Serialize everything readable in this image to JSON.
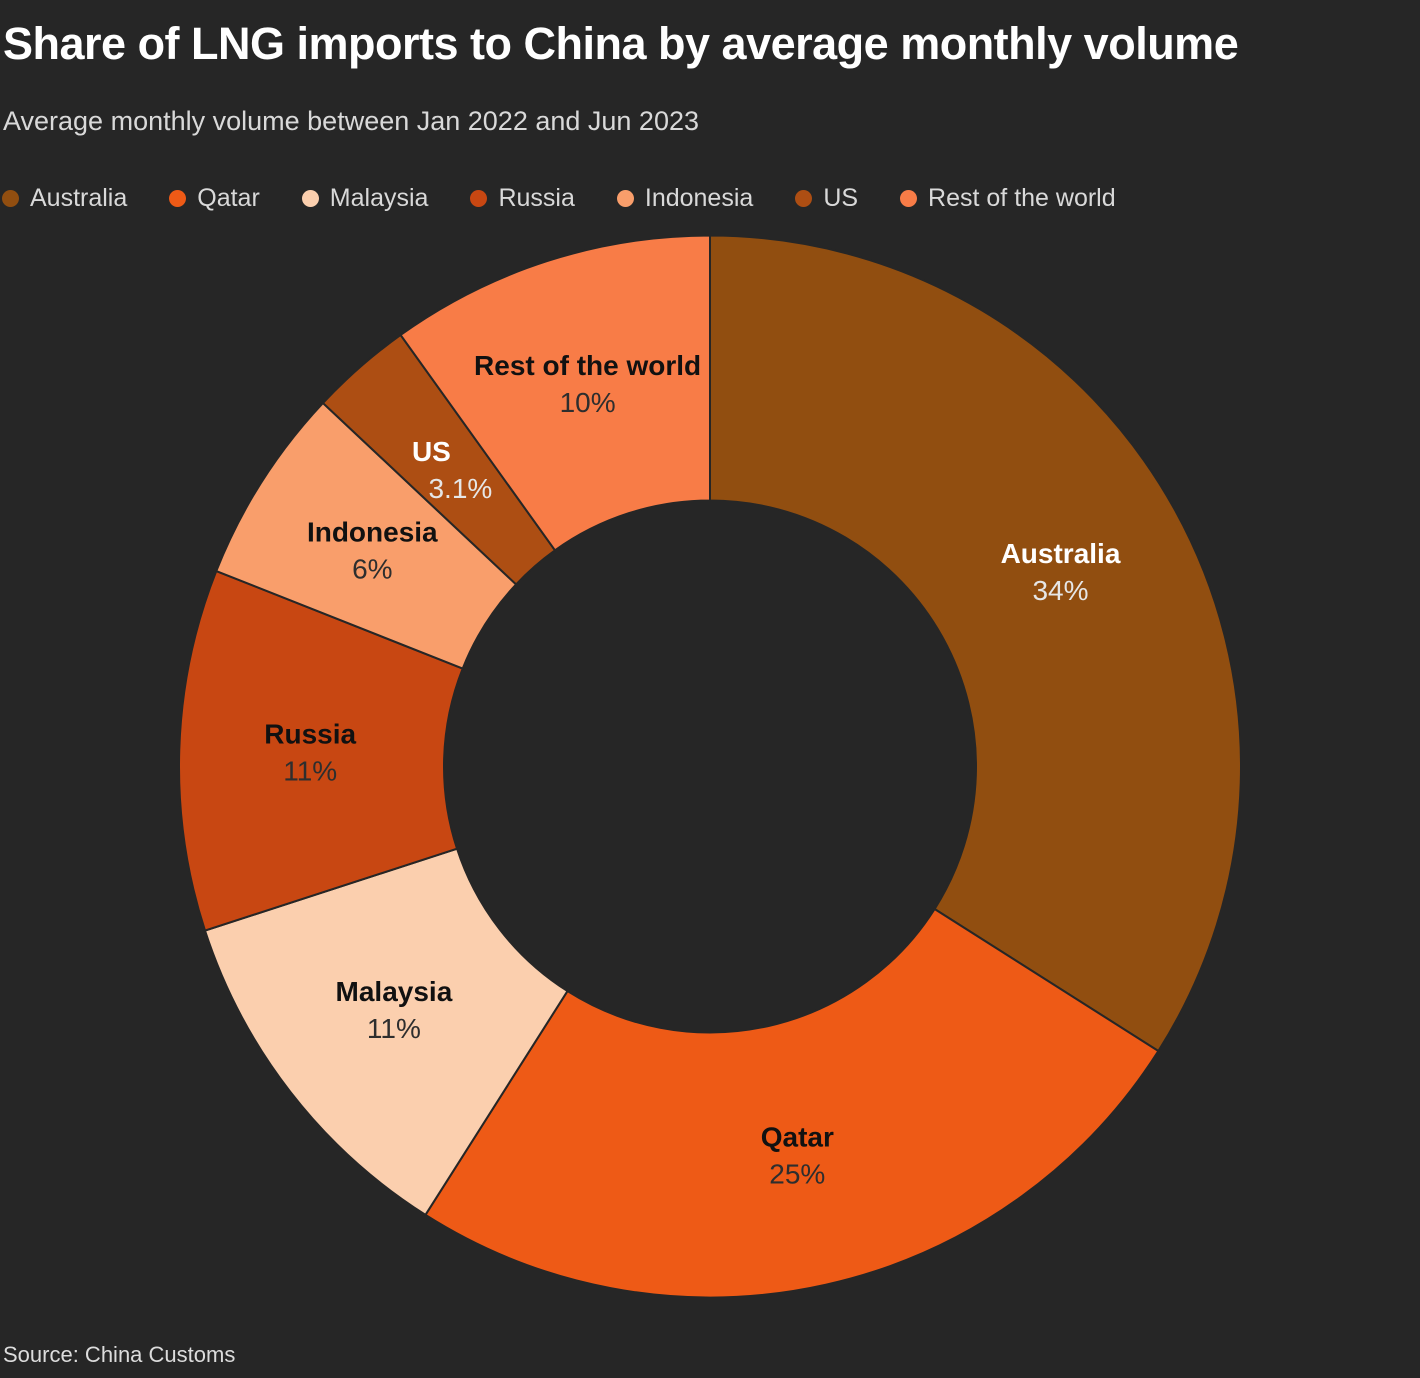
{
  "header": {
    "title": "Share of LNG imports to China by average monthly volume",
    "subtitle": "Average monthly volume between Jan 2022 and Jun 2023"
  },
  "source": "Source: China Customs",
  "colors": {
    "background": "#262626",
    "title_text": "#ffffff",
    "subtitle_text": "#d9d9d9",
    "legend_text": "#d9d9d9",
    "source_text": "#dcdcdc",
    "slice_divider": "#262626",
    "label_on_dark_slice": "#ffffff",
    "label_on_light_slice": "#111111"
  },
  "chart_data": {
    "type": "pie",
    "subtype": "donut",
    "title": "Share of LNG imports to China by average monthly volume",
    "start_angle_deg": 0,
    "direction": "clockwise",
    "legend_position": "top",
    "slices": [
      {
        "name": "Australia",
        "value": 34,
        "label": "34%",
        "color": "#914e10",
        "label_style": "light"
      },
      {
        "name": "Qatar",
        "value": 25,
        "label": "25%",
        "color": "#ee5a16",
        "label_style": "dark"
      },
      {
        "name": "Malaysia",
        "value": 11,
        "label": "11%",
        "color": "#fbcfae",
        "label_style": "dark"
      },
      {
        "name": "Russia",
        "value": 11,
        "label": "11%",
        "color": "#c84712",
        "label_style": "dark"
      },
      {
        "name": "Indonesia",
        "value": 6,
        "label": "6%",
        "color": "#f99e6b",
        "label_style": "dark"
      },
      {
        "name": "US",
        "value": 3.1,
        "label": "3.1%",
        "color": "#ad4e13",
        "label_style": "light"
      },
      {
        "name": "Rest of the world",
        "value": 9.9,
        "label": "10%",
        "color": "#f87c47",
        "label_style": "dark"
      }
    ]
  }
}
